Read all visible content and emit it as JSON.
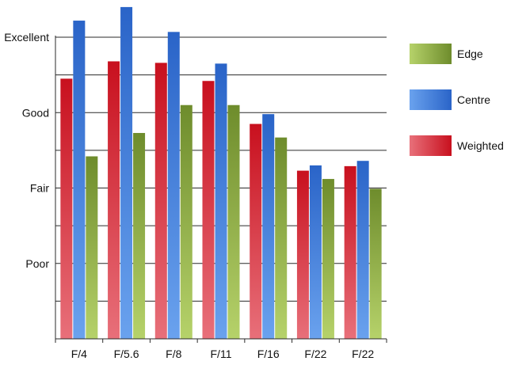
{
  "chart_data": {
    "type": "bar",
    "title": "",
    "xlabel": "",
    "ylabel": "",
    "categories": [
      "F/4",
      "F/5.6",
      "F/8",
      "F/11",
      "F/16",
      "F/22",
      "F/22"
    ],
    "y_ticks": [
      {
        "label": "Poor",
        "value": 1
      },
      {
        "label": "Fair",
        "value": 2
      },
      {
        "label": "Good",
        "value": 3
      },
      {
        "label": "Excellent",
        "value": 4
      }
    ],
    "ylim": [
      0,
      4
    ],
    "grid": "horizontal",
    "legend_position": "right",
    "series": [
      {
        "name": "Weighted",
        "values": [
          3.45,
          3.68,
          3.66,
          3.42,
          2.85,
          2.23,
          2.29
        ],
        "color": "#c8101e",
        "color_light": "#e8707a"
      },
      {
        "name": "Centre",
        "values": [
          4.22,
          4.4,
          4.07,
          3.65,
          2.98,
          2.3,
          2.36
        ],
        "color": "#2a64c8",
        "color_light": "#6aa2ee"
      },
      {
        "name": "Edge",
        "values": [
          2.42,
          2.73,
          3.1,
          3.1,
          2.67,
          2.12,
          1.99
        ],
        "color": "#6e8c2c",
        "color_light": "#b6d26a"
      }
    ],
    "legend_order": [
      "Edge",
      "Centre",
      "Weighted"
    ]
  }
}
